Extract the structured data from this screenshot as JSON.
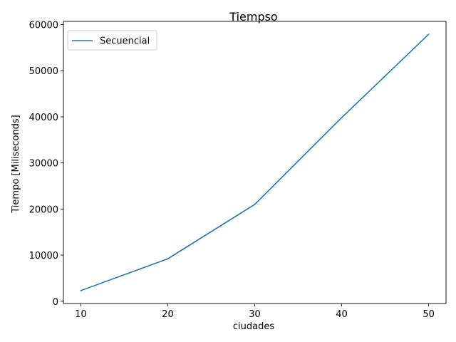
{
  "chart_data": {
    "type": "line",
    "title": "Tiempso",
    "xlabel": "ciudades",
    "ylabel": "Tiempo [Miliseconds]",
    "x": [
      10,
      20,
      30,
      40,
      50
    ],
    "series": [
      {
        "name": "Secuencial",
        "values": [
          2300,
          9200,
          21000,
          39800,
          57900
        ],
        "color": "#1f77b4"
      }
    ],
    "xticks": [
      10,
      20,
      30,
      40,
      50
    ],
    "yticks": [
      0,
      10000,
      20000,
      30000,
      40000,
      50000,
      60000
    ],
    "xlim": [
      8,
      52
    ],
    "ylim": [
      -500,
      60700
    ],
    "grid": false,
    "legend_position": "top-left"
  }
}
